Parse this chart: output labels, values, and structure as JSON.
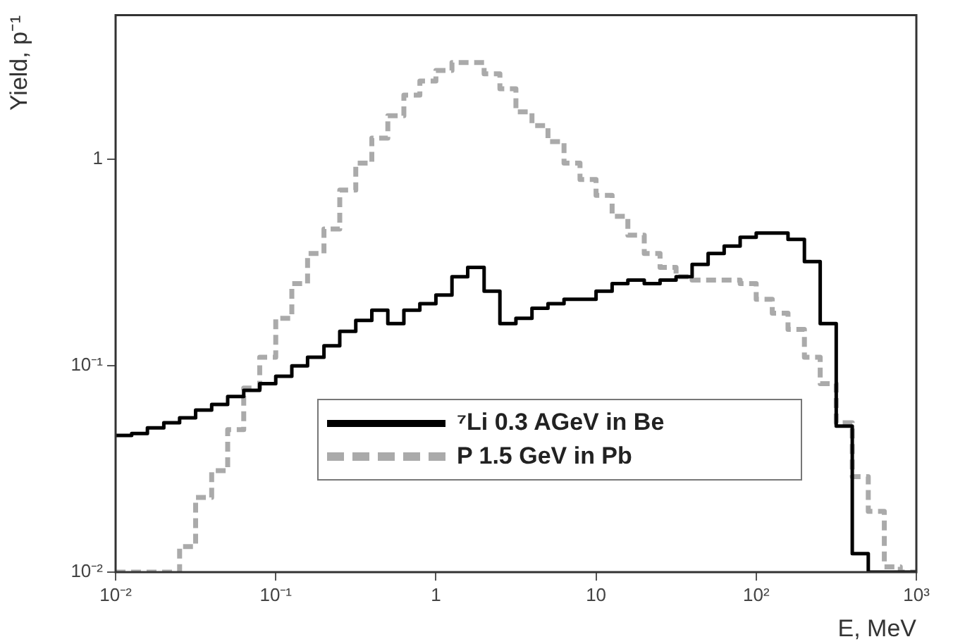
{
  "chart_data": {
    "type": "histogram",
    "xlabel": "E, MeV",
    "ylabel": "Yield, p⁻¹",
    "log": "xy",
    "legend": "bottom",
    "bins": [
      0.01,
      0.0126,
      0.0158,
      0.02,
      0.0251,
      0.0316,
      0.0398,
      0.0501,
      0.0631,
      0.0794,
      0.1,
      0.126,
      0.158,
      0.2,
      0.251,
      0.316,
      0.398,
      0.501,
      0.631,
      0.794,
      1,
      1.26,
      1.58,
      2,
      2.51,
      3.16,
      3.98,
      5.01,
      6.31,
      7.94,
      10,
      12.6,
      15.8,
      20,
      25.1,
      31.6,
      39.8,
      50.1,
      63.1,
      79.4,
      100,
      126,
      158,
      200,
      251,
      316,
      398,
      501,
      631,
      794,
      1000
    ],
    "series": [
      {
        "name": "⁷Li 0.3 AGeV in Be",
        "color": "#000000",
        "line_style": "solid",
        "values": [
          0.046,
          0.047,
          0.05,
          0.053,
          0.056,
          0.061,
          0.065,
          0.071,
          0.076,
          0.082,
          0.089,
          0.1,
          0.11,
          0.125,
          0.147,
          0.166,
          0.186,
          0.16,
          0.186,
          0.2,
          0.22,
          0.27,
          0.3,
          0.23,
          0.16,
          0.17,
          0.19,
          0.2,
          0.21,
          0.21,
          0.23,
          0.25,
          0.26,
          0.25,
          0.26,
          0.27,
          0.31,
          0.35,
          0.38,
          0.42,
          0.44,
          0.44,
          0.41,
          0.32,
          0.16,
          0.051,
          0.0123,
          0.01,
          0.01,
          0.01
        ]
      },
      {
        "name": "P 1.5 GeV in Pb",
        "color": "#aaaaaa",
        "line_style": "dashed",
        "values": [
          0.01,
          0.01,
          0.01,
          0.01,
          0.0133,
          0.023,
          0.031,
          0.049,
          0.078,
          0.11,
          0.17,
          0.25,
          0.35,
          0.46,
          0.71,
          0.96,
          1.27,
          1.63,
          2.05,
          2.4,
          2.7,
          2.95,
          2.95,
          2.6,
          2.2,
          1.7,
          1.46,
          1.22,
          0.96,
          0.8,
          0.67,
          0.53,
          0.43,
          0.35,
          0.3,
          0.27,
          0.26,
          0.26,
          0.26,
          0.25,
          0.21,
          0.18,
          0.15,
          0.11,
          0.082,
          0.053,
          0.029,
          0.0197,
          0.0106,
          0.01
        ]
      }
    ],
    "xlim": [
      0.01,
      1000
    ],
    "ylim": [
      0.01,
      5
    ],
    "xticks": [
      {
        "value": 0.01,
        "label": "10⁻²"
      },
      {
        "value": 0.1,
        "label": "10⁻¹"
      },
      1,
      10,
      {
        "value": 100,
        "label": "10²"
      },
      {
        "value": 1000,
        "label": "10³"
      }
    ],
    "yticks": [
      {
        "value": 0.01,
        "label": "10⁻²"
      },
      {
        "value": 0.1,
        "label": "10⁻¹"
      },
      1
    ]
  }
}
